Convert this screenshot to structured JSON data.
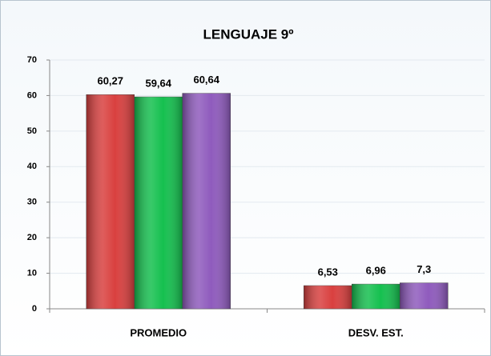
{
  "chart_data": {
    "type": "bar",
    "title": "LENGUAJE 9º",
    "categories": [
      "PROMEDIO",
      "DESV. EST."
    ],
    "series": [
      {
        "color": "#d9403f",
        "values": [
          60.27,
          6.53
        ],
        "value_labels": [
          "60,27",
          "6,53"
        ]
      },
      {
        "color": "#15c04f",
        "values": [
          59.64,
          6.96
        ],
        "value_labels": [
          "59,64",
          "6,96"
        ]
      },
      {
        "color": "#8f5bbd",
        "values": [
          60.64,
          7.3
        ],
        "value_labels": [
          "60,64",
          "7,3"
        ]
      }
    ],
    "ylim": [
      0,
      70
    ],
    "yticks": [
      0,
      10,
      20,
      30,
      40,
      50,
      60,
      70
    ],
    "grid": true
  }
}
